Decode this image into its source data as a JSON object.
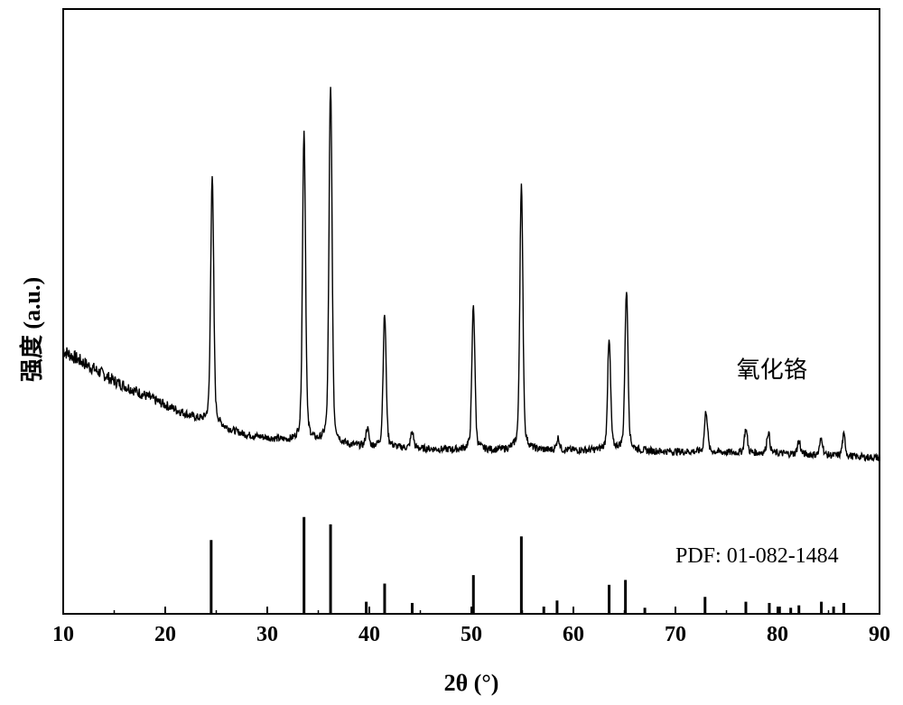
{
  "chart_data": {
    "type": "line",
    "title": "",
    "xlabel": "2θ (°)",
    "ylabel": "强度 (a.u.)",
    "xlim": [
      10,
      90
    ],
    "ylim": [
      0,
      1
    ],
    "x_ticks": [
      10,
      20,
      30,
      40,
      50,
      60,
      70,
      80,
      90
    ],
    "y_ticks_shown": false,
    "grid": false,
    "legend": "none",
    "series": [
      {
        "name": "氧化铬",
        "kind": "xrd-pattern",
        "baseline": [
          [
            10,
            0.435
          ],
          [
            15,
            0.385
          ],
          [
            20,
            0.345
          ],
          [
            24,
            0.315
          ],
          [
            28,
            0.295
          ],
          [
            33,
            0.283
          ],
          [
            40,
            0.275
          ],
          [
            50,
            0.27
          ],
          [
            60,
            0.27
          ],
          [
            70,
            0.268
          ],
          [
            80,
            0.265
          ],
          [
            90,
            0.258
          ]
        ],
        "peaks": [
          {
            "x": 24.6,
            "y": 0.725
          },
          {
            "x": 33.6,
            "y": 0.8
          },
          {
            "x": 36.2,
            "y": 0.875
          },
          {
            "x": 39.8,
            "y": 0.305
          },
          {
            "x": 41.5,
            "y": 0.495
          },
          {
            "x": 44.2,
            "y": 0.3
          },
          {
            "x": 50.2,
            "y": 0.51
          },
          {
            "x": 54.9,
            "y": 0.71
          },
          {
            "x": 58.5,
            "y": 0.29
          },
          {
            "x": 63.5,
            "y": 0.45
          },
          {
            "x": 65.2,
            "y": 0.535
          },
          {
            "x": 73.0,
            "y": 0.335
          },
          {
            "x": 76.9,
            "y": 0.305
          },
          {
            "x": 79.1,
            "y": 0.3
          },
          {
            "x": 82.1,
            "y": 0.285
          },
          {
            "x": 84.3,
            "y": 0.29
          },
          {
            "x": 86.5,
            "y": 0.295
          }
        ]
      },
      {
        "name": "PDF: 01-082-1484",
        "kind": "reference-sticks",
        "sticks": [
          {
            "x": 24.5,
            "y": 0.122
          },
          {
            "x": 33.6,
            "y": 0.16
          },
          {
            "x": 36.2,
            "y": 0.148
          },
          {
            "x": 39.7,
            "y": 0.02
          },
          {
            "x": 41.5,
            "y": 0.05
          },
          {
            "x": 44.2,
            "y": 0.018
          },
          {
            "x": 50.2,
            "y": 0.064
          },
          {
            "x": 54.9,
            "y": 0.128
          },
          {
            "x": 57.1,
            "y": 0.012
          },
          {
            "x": 58.4,
            "y": 0.022
          },
          {
            "x": 63.5,
            "y": 0.048
          },
          {
            "x": 65.1,
            "y": 0.056
          },
          {
            "x": 67.0,
            "y": 0.01
          },
          {
            "x": 72.9,
            "y": 0.028
          },
          {
            "x": 76.9,
            "y": 0.02
          },
          {
            "x": 79.2,
            "y": 0.018
          },
          {
            "x": 80.2,
            "y": 0.012
          },
          {
            "x": 81.3,
            "y": 0.01
          },
          {
            "x": 82.1,
            "y": 0.014
          },
          {
            "x": 84.3,
            "y": 0.02
          },
          {
            "x": 85.5,
            "y": 0.012
          },
          {
            "x": 86.5,
            "y": 0.018
          }
        ]
      }
    ],
    "annotations": [
      {
        "text": "氧化铬",
        "x": 76,
        "y": 0.39
      },
      {
        "text": "PDF: 01-082-1484",
        "x": 70,
        "y": 0.085
      }
    ]
  }
}
